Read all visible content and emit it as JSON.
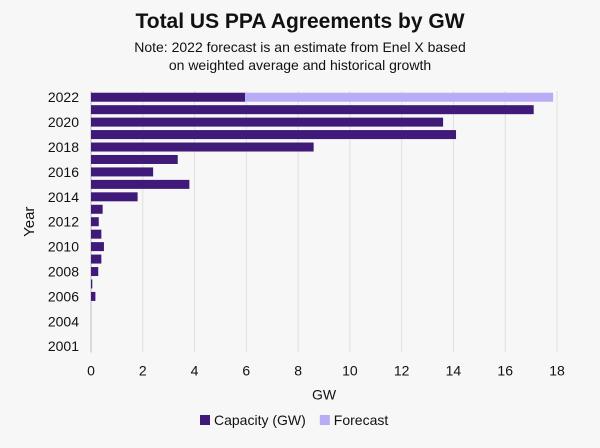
{
  "chart_data": {
    "type": "bar",
    "orientation": "horizontal",
    "stacked": true,
    "title": "Total US PPA Agreements by GW",
    "subtitle": "Note: 2022 forecast is an estimate from Enel X based on weighted average and historical growth",
    "subtitle_lines": [
      "Note: 2022 forecast is an estimate from Enel X based",
      "on weighted average and historical growth"
    ],
    "xlabel": "GW",
    "ylabel": "Year",
    "xlim": [
      0,
      18
    ],
    "xticks": [
      0,
      2,
      4,
      6,
      8,
      10,
      12,
      14,
      16,
      18
    ],
    "grid": true,
    "legend_position": "bottom",
    "categories": [
      "2022",
      "2021",
      "2020",
      "2019",
      "2018",
      "2017",
      "2016",
      "2015",
      "2014",
      "2013",
      "2012",
      "2011",
      "2010",
      "2009",
      "2008",
      "2007",
      "2006",
      "2005",
      "2004",
      "2002",
      "2001"
    ],
    "category_tick_labels": [
      "2022",
      "",
      "2020",
      "",
      "2018",
      "",
      "2016",
      "",
      "2014",
      "",
      "2012",
      "",
      "2010",
      "",
      "2008",
      "",
      "2006",
      "",
      "2004",
      "",
      "2001"
    ],
    "series": [
      {
        "name": "Capacity (GW)",
        "color": "#401a78",
        "values": [
          5.95,
          17.1,
          13.6,
          14.1,
          8.6,
          3.35,
          2.4,
          3.8,
          1.8,
          0.45,
          0.3,
          0.4,
          0.5,
          0.4,
          0.28,
          0.05,
          0.17,
          0,
          0,
          0,
          0
        ]
      },
      {
        "name": "Forecast",
        "color": "#b8acf6",
        "values": [
          11.9,
          0,
          0,
          0,
          0,
          0,
          0,
          0,
          0,
          0,
          0,
          0,
          0,
          0,
          0,
          0,
          0,
          0,
          0,
          0,
          0
        ]
      }
    ]
  }
}
